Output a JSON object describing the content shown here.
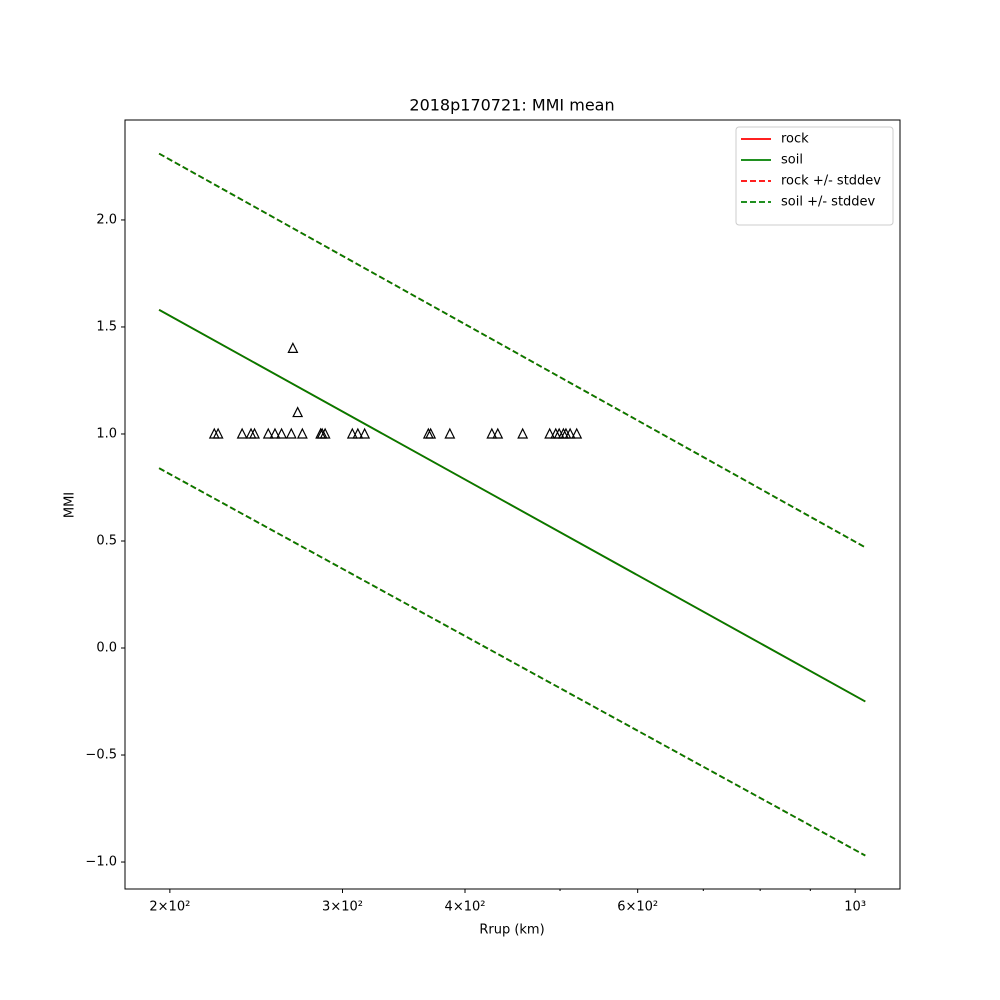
{
  "chart_data": {
    "type": "line",
    "title": "2018p170721: MMI mean",
    "xlabel": "Rrup (km)",
    "ylabel": "MMI",
    "xscale": "log",
    "xlim": [
      180,
      1111
    ],
    "ylim": [
      -1.126,
      2.467
    ],
    "xticks": [
      {
        "value": 200,
        "label": "2×10²"
      },
      {
        "value": 300,
        "label": "3×10²"
      },
      {
        "value": 400,
        "label": "4×10²"
      },
      {
        "value": 600,
        "label": "6×10²"
      },
      {
        "value": 1000,
        "label": "10³"
      }
    ],
    "xminorticks": [
      500,
      700,
      800,
      900
    ],
    "yticks": [
      {
        "value": -1,
        "label": "−1.0"
      },
      {
        "value": -0.5,
        "label": "−0.5"
      },
      {
        "value": 0,
        "label": "0.0"
      },
      {
        "value": 0.5,
        "label": "0.5"
      },
      {
        "value": 1,
        "label": "1.0"
      },
      {
        "value": 1.5,
        "label": "1.5"
      },
      {
        "value": 2,
        "label": "2.0"
      }
    ],
    "legend": "upper right",
    "x": [
      195,
      1024
    ],
    "series": [
      {
        "name": "rock",
        "color": "#ff0000",
        "style": "solid",
        "values": [
          1.58,
          -0.25
        ]
      },
      {
        "name": "soil",
        "color": "#008000",
        "style": "solid",
        "values": [
          1.58,
          -0.25
        ]
      },
      {
        "name": "rock +/- stddev",
        "color": "#ff0000",
        "style": "dashed",
        "upper": [
          2.31,
          0.47
        ],
        "lower": [
          0.84,
          -0.97
        ]
      },
      {
        "name": "soil +/- stddev",
        "color": "#008000",
        "style": "dashed",
        "upper": [
          2.31,
          0.47
        ],
        "lower": [
          0.84,
          -0.97
        ]
      }
    ],
    "points": {
      "color": "#000000",
      "x": [
        222,
        224,
        237,
        242,
        244,
        252,
        256,
        260,
        266,
        267,
        270,
        273,
        285,
        286,
        288,
        307,
        311,
        316,
        367,
        369,
        386,
        426,
        432,
        458,
        488,
        495,
        499,
        504,
        507,
        512,
        520
      ],
      "y": [
        1,
        1,
        1,
        1,
        1,
        1,
        1,
        1,
        1,
        1.4,
        1.1,
        1,
        1,
        1,
        1,
        1,
        1,
        1,
        1,
        1,
        1,
        1,
        1,
        1,
        1,
        1,
        1,
        1,
        1,
        1,
        1
      ]
    }
  }
}
